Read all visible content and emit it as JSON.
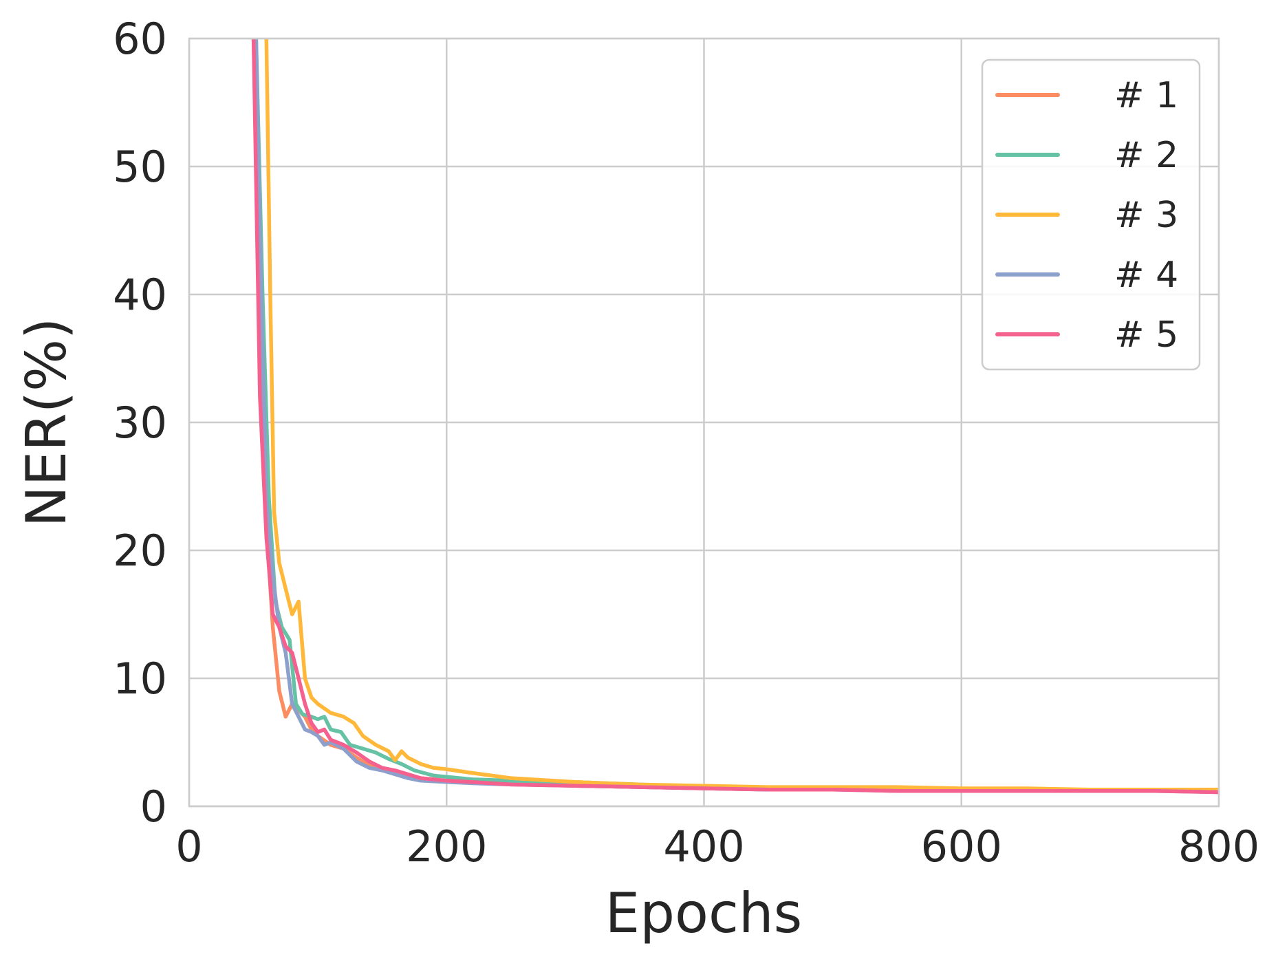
{
  "chart_data": {
    "type": "line",
    "title": "",
    "xlabel": "Epochs",
    "ylabel": "NER(%)",
    "xlim": [
      0,
      800
    ],
    "ylim": [
      0,
      60
    ],
    "xticks": [
      0,
      200,
      400,
      600,
      800
    ],
    "yticks": [
      0,
      10,
      20,
      30,
      40,
      50,
      60
    ],
    "xtick_labels": [
      "0",
      "200",
      "400",
      "600",
      "800"
    ],
    "ytick_labels": [
      "0",
      "10",
      "20",
      "30",
      "40",
      "50",
      "60"
    ],
    "grid": true,
    "legend": "top-right",
    "series": [
      {
        "name": "# 1",
        "color": "#fc8d62",
        "points": [
          [
            50,
            60
          ],
          [
            55,
            40
          ],
          [
            60,
            22
          ],
          [
            65,
            14
          ],
          [
            70,
            9
          ],
          [
            75,
            7
          ],
          [
            80,
            8
          ],
          [
            85,
            7.5
          ],
          [
            90,
            7
          ],
          [
            95,
            6
          ],
          [
            100,
            5.5
          ],
          [
            110,
            4.8
          ],
          [
            120,
            4.5
          ],
          [
            130,
            3.8
          ],
          [
            140,
            3.2
          ],
          [
            150,
            3.0
          ],
          [
            160,
            2.7
          ],
          [
            170,
            2.4
          ],
          [
            180,
            2.2
          ],
          [
            200,
            2.0
          ],
          [
            220,
            1.9
          ],
          [
            250,
            1.8
          ],
          [
            300,
            1.6
          ],
          [
            350,
            1.5
          ],
          [
            400,
            1.4
          ],
          [
            450,
            1.3
          ],
          [
            500,
            1.3
          ],
          [
            550,
            1.3
          ],
          [
            600,
            1.2
          ],
          [
            650,
            1.2
          ],
          [
            700,
            1.2
          ],
          [
            750,
            1.2
          ],
          [
            800,
            1.2
          ]
        ]
      },
      {
        "name": "# 2",
        "color": "#66c2a5",
        "points": [
          [
            52,
            60
          ],
          [
            57,
            40
          ],
          [
            62,
            24
          ],
          [
            67,
            16
          ],
          [
            72,
            14
          ],
          [
            78,
            13
          ],
          [
            83,
            8
          ],
          [
            88,
            7.2
          ],
          [
            95,
            7.0
          ],
          [
            100,
            6.8
          ],
          [
            105,
            7.0
          ],
          [
            110,
            6.0
          ],
          [
            118,
            5.8
          ],
          [
            125,
            4.8
          ],
          [
            135,
            4.5
          ],
          [
            145,
            4.2
          ],
          [
            155,
            3.7
          ],
          [
            165,
            3.3
          ],
          [
            175,
            2.8
          ],
          [
            190,
            2.4
          ],
          [
            200,
            2.3
          ],
          [
            220,
            2.1
          ],
          [
            250,
            2.0
          ],
          [
            300,
            1.9
          ],
          [
            350,
            1.7
          ],
          [
            400,
            1.5
          ],
          [
            450,
            1.4
          ],
          [
            500,
            1.4
          ],
          [
            550,
            1.3
          ],
          [
            600,
            1.3
          ],
          [
            650,
            1.2
          ],
          [
            700,
            1.2
          ],
          [
            750,
            1.2
          ],
          [
            800,
            1.2
          ]
        ]
      },
      {
        "name": "# 3",
        "color": "#ffb83a",
        "points": [
          [
            60,
            60
          ],
          [
            63,
            40
          ],
          [
            66,
            23
          ],
          [
            70,
            19
          ],
          [
            75,
            17
          ],
          [
            80,
            15
          ],
          [
            85,
            16
          ],
          [
            90,
            10
          ],
          [
            95,
            8.5
          ],
          [
            100,
            8.0
          ],
          [
            110,
            7.3
          ],
          [
            120,
            7.0
          ],
          [
            128,
            6.5
          ],
          [
            135,
            5.5
          ],
          [
            145,
            4.8
          ],
          [
            155,
            4.3
          ],
          [
            160,
            3.6
          ],
          [
            165,
            4.3
          ],
          [
            170,
            3.8
          ],
          [
            180,
            3.3
          ],
          [
            190,
            3.0
          ],
          [
            200,
            2.9
          ],
          [
            220,
            2.6
          ],
          [
            250,
            2.2
          ],
          [
            300,
            1.9
          ],
          [
            350,
            1.7
          ],
          [
            400,
            1.6
          ],
          [
            450,
            1.5
          ],
          [
            500,
            1.5
          ],
          [
            550,
            1.5
          ],
          [
            600,
            1.4
          ],
          [
            650,
            1.4
          ],
          [
            700,
            1.3
          ],
          [
            750,
            1.3
          ],
          [
            800,
            1.3
          ]
        ]
      },
      {
        "name": "# 4",
        "color": "#8da0cb",
        "points": [
          [
            52,
            60
          ],
          [
            56,
            40
          ],
          [
            60,
            24
          ],
          [
            65,
            18
          ],
          [
            70,
            14
          ],
          [
            75,
            12
          ],
          [
            80,
            8
          ],
          [
            85,
            7
          ],
          [
            90,
            6
          ],
          [
            95,
            5.8
          ],
          [
            100,
            5.5
          ],
          [
            105,
            4.8
          ],
          [
            110,
            5.0
          ],
          [
            120,
            4.5
          ],
          [
            130,
            3.5
          ],
          [
            140,
            3.0
          ],
          [
            150,
            2.8
          ],
          [
            160,
            2.5
          ],
          [
            170,
            2.2
          ],
          [
            180,
            2.0
          ],
          [
            200,
            1.9
          ],
          [
            220,
            1.8
          ],
          [
            250,
            1.7
          ],
          [
            300,
            1.6
          ],
          [
            350,
            1.5
          ],
          [
            400,
            1.4
          ],
          [
            450,
            1.3
          ],
          [
            500,
            1.3
          ],
          [
            550,
            1.2
          ],
          [
            600,
            1.2
          ],
          [
            650,
            1.2
          ],
          [
            700,
            1.2
          ],
          [
            750,
            1.2
          ],
          [
            800,
            1.1
          ]
        ]
      },
      {
        "name": "# 5",
        "color": "#f5618e",
        "points": [
          [
            50,
            60
          ],
          [
            55,
            32
          ],
          [
            60,
            21
          ],
          [
            65,
            15
          ],
          [
            70,
            14
          ],
          [
            75,
            12.5
          ],
          [
            80,
            12
          ],
          [
            85,
            10
          ],
          [
            90,
            8
          ],
          [
            95,
            6.5
          ],
          [
            100,
            5.8
          ],
          [
            105,
            6.0
          ],
          [
            110,
            5.2
          ],
          [
            120,
            4.8
          ],
          [
            130,
            4.2
          ],
          [
            140,
            3.5
          ],
          [
            150,
            3.0
          ],
          [
            160,
            2.8
          ],
          [
            170,
            2.5
          ],
          [
            180,
            2.2
          ],
          [
            200,
            2.0
          ],
          [
            220,
            1.9
          ],
          [
            250,
            1.7
          ],
          [
            300,
            1.6
          ],
          [
            350,
            1.5
          ],
          [
            400,
            1.4
          ],
          [
            450,
            1.3
          ],
          [
            500,
            1.3
          ],
          [
            550,
            1.2
          ],
          [
            600,
            1.2
          ],
          [
            650,
            1.2
          ],
          [
            700,
            1.2
          ],
          [
            750,
            1.2
          ],
          [
            800,
            1.1
          ]
        ]
      }
    ]
  }
}
